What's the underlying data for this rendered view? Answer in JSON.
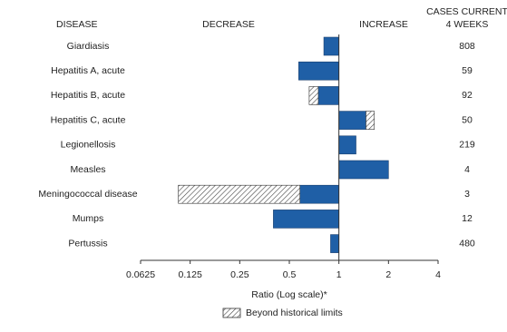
{
  "chart_data": {
    "type": "bar",
    "headers": {
      "disease": "DISEASE",
      "decrease": "DECREASE",
      "increase": "INCREASE",
      "cases": [
        "CASES CURRENT",
        "4 WEEKS"
      ]
    },
    "categories": [
      "Giardiasis",
      "Hepatitis A, acute",
      "Hepatitis B, acute",
      "Hepatitis C, acute",
      "Legionellosis",
      "Measles",
      "Meningococcal disease",
      "Mumps",
      "Pertussis"
    ],
    "values": [
      0.81,
      0.57,
      0.66,
      1.64,
      1.27,
      2.0,
      0.106,
      0.4,
      0.89
    ],
    "historical_limits": [
      null,
      null,
      0.75,
      1.46,
      null,
      null,
      0.58,
      null,
      null
    ],
    "cases": [
      808,
      59,
      92,
      50,
      219,
      4,
      3,
      12,
      480
    ],
    "color": "#1f5fa6",
    "log_scale": true,
    "xlim": [
      0.0625,
      4
    ],
    "xticks": [
      0.0625,
      0.125,
      0.25,
      0.5,
      1,
      2,
      4
    ],
    "xlabel": "Ratio (Log scale)*",
    "legend": "Beyond historical limits"
  }
}
